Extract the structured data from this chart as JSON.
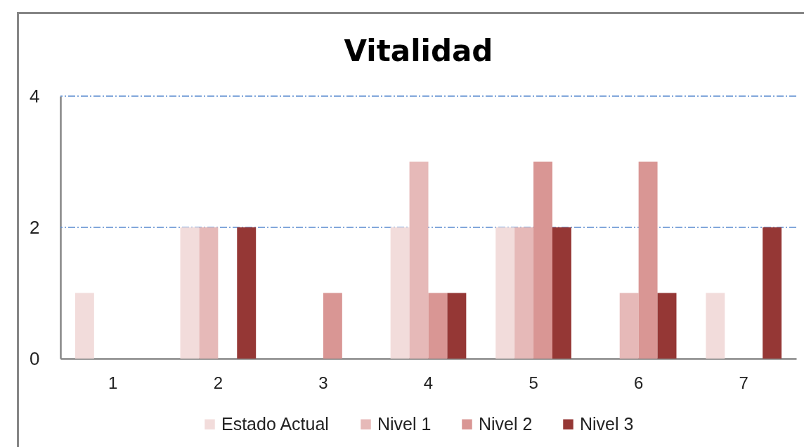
{
  "chart_data": {
    "type": "bar",
    "title": "Vitalidad",
    "categories": [
      "1",
      "2",
      "3",
      "4",
      "5",
      "6",
      "7"
    ],
    "series": [
      {
        "name": "Estado Actual",
        "color": "#f2dcdb",
        "values": [
          1,
          2,
          0,
          2,
          2,
          0,
          1
        ]
      },
      {
        "name": "Nivel 1",
        "color": "#e6b9b8",
        "values": [
          0,
          2,
          0,
          3,
          2,
          1,
          0
        ]
      },
      {
        "name": "Nivel 2",
        "color": "#d99694",
        "values": [
          0,
          0,
          1,
          1,
          3,
          3,
          0
        ]
      },
      {
        "name": "Nivel 3",
        "color": "#953735",
        "values": [
          0,
          2,
          0,
          1,
          2,
          1,
          2
        ]
      }
    ],
    "ylim": [
      0,
      4
    ],
    "yticks": [
      0,
      2,
      4
    ],
    "legend": "bottom",
    "ref_lines": [
      {
        "axis": "y",
        "value": 2,
        "color": "#5a8ad0",
        "line_style": "dashed"
      },
      {
        "axis": "y",
        "value": 4,
        "color": "#5a8ad0",
        "line_style": "dashed"
      }
    ]
  }
}
